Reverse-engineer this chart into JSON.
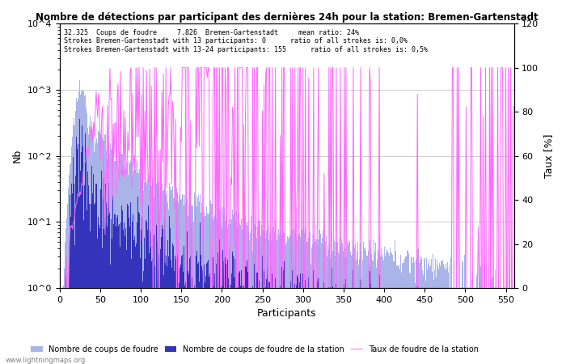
{
  "title": "Nombre de détections par participant des dernières 24h pour la station: Bremen-Gartenstadt",
  "xlabel": "Participants",
  "ylabel_left": "Nb",
  "ylabel_right": "Taux [%]",
  "annotation_line1": "32.325  Coups de foudre     7.826  Bremen-Gartenstadt     mean ratio: 24%",
  "annotation_line2": "Strokes Bremen-Gartenstadt with 13 participants: 0      ratio of all strokes is: 0,0%",
  "annotation_line3": "Strokes Bremen-Gartenstadt with 13-24 participants: 155      ratio of all strokes is: 0,5%",
  "watermark": "www.lightningmaps.org",
  "n_participants": 560,
  "xlim": [
    0,
    560
  ],
  "ylim_right": [
    0,
    120
  ],
  "bar_color_total": "#aab4e8",
  "bar_color_station": "#3333bb",
  "line_color": "#ff66ff",
  "legend_label_total": "Nombre de coups de foudre",
  "legend_label_station": "Nombre de coups de foudre de la station",
  "legend_label_line": "Taux de foudre de la station",
  "background_color": "#ffffff",
  "grid_color": "#bbbbbb"
}
